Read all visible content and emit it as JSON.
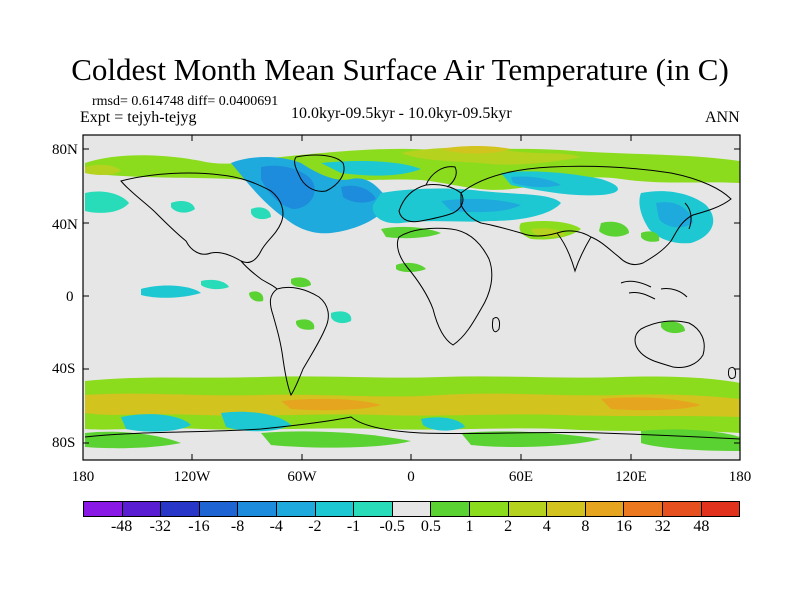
{
  "title": "Coldest Month Mean Surface Air Temperature (in C)",
  "stats": "rmsd= 0.614748 diff= 0.0400691",
  "experiment": "Expt = tejyh-tejyg",
  "period": "10.0kyr-09.5kyr - 10.0kyr-09.5kyr",
  "season": "ANN",
  "lat_labels": [
    "80N",
    "40N",
    "0",
    "40S",
    "80S"
  ],
  "lon_labels": [
    "180",
    "120W",
    "60W",
    "0",
    "60E",
    "120E",
    "180"
  ],
  "colorbar": {
    "labels": [
      "-48",
      "-32",
      "-16",
      "-8",
      "-4",
      "-2",
      "-1",
      "-0.5",
      "0.5",
      "1",
      "2",
      "4",
      "8",
      "16",
      "32",
      "48"
    ],
    "colors": [
      "#8a19e6",
      "#5a1ed2",
      "#2837c8",
      "#1e64d2",
      "#1e8cdc",
      "#1eaadc",
      "#1ec8d2",
      "#28dcb9",
      "#e6e6e6",
      "#5ad232",
      "#8cdc1e",
      "#b4d21e",
      "#d2c31e",
      "#e6a51e",
      "#eb781e",
      "#e6501e",
      "#e1321e"
    ]
  },
  "map": {
    "background_color": "#e6e6e6",
    "coast_color": "#000000"
  }
}
